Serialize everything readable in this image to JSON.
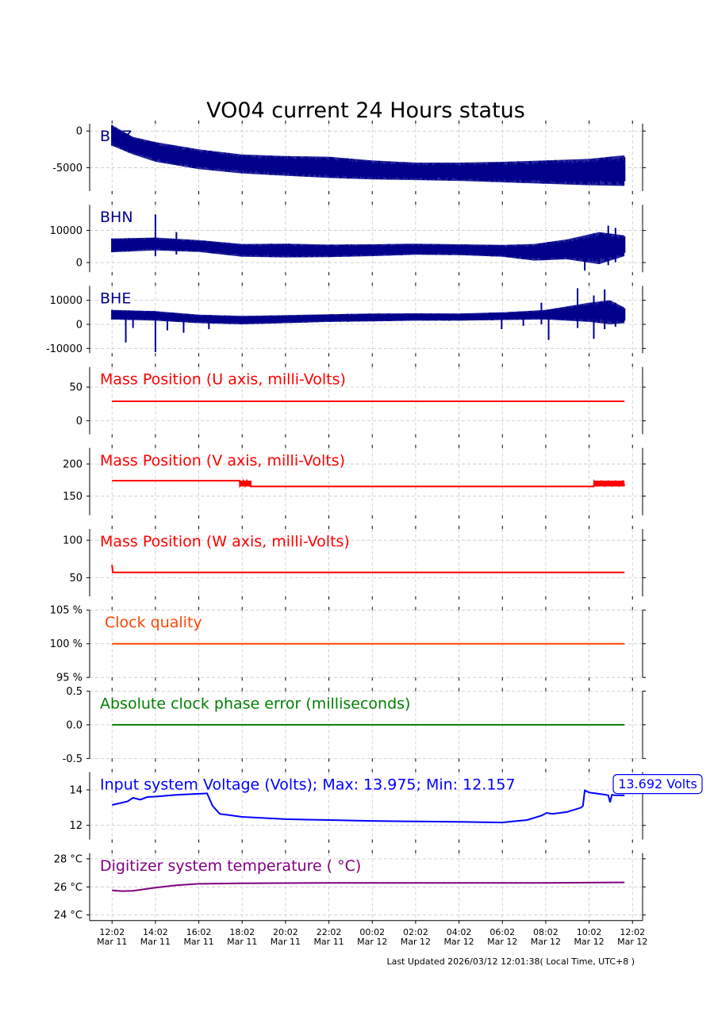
{
  "title": "VO04 current 24 Hours status",
  "footer": "Last Updated 2026/03/12 12:01:38( Local Time, UTC+8 )",
  "colors": {
    "seismic": "#00008B",
    "masspos": "#FF0000",
    "clock": "#FF4500",
    "phase": "#008000",
    "voltage": "#0000FF",
    "temperature": "#800080"
  },
  "chart_data": {
    "type": "line",
    "x_time_range": [
      "2026-03-11 11:00",
      "2026-03-12 12:30"
    ],
    "x_ticks": [
      {
        "time": "2026-03-11 12:02",
        "l1": "12:02",
        "l2": "Mar 11"
      },
      {
        "time": "2026-03-11 14:02",
        "l1": "14:02",
        "l2": "Mar 11"
      },
      {
        "time": "2026-03-11 16:02",
        "l1": "16:02",
        "l2": "Mar 11"
      },
      {
        "time": "2026-03-11 18:02",
        "l1": "18:02",
        "l2": "Mar 11"
      },
      {
        "time": "2026-03-11 20:02",
        "l1": "20:02",
        "l2": "Mar 11"
      },
      {
        "time": "2026-03-11 22:02",
        "l1": "22:02",
        "l2": "Mar 11"
      },
      {
        "time": "2026-03-12 00:02",
        "l1": "00:02",
        "l2": "Mar 12"
      },
      {
        "time": "2026-03-12 02:02",
        "l1": "02:02",
        "l2": "Mar 12"
      },
      {
        "time": "2026-03-12 04:02",
        "l1": "04:02",
        "l2": "Mar 12"
      },
      {
        "time": "2026-03-12 06:02",
        "l1": "06:02",
        "l2": "Mar 12"
      },
      {
        "time": "2026-03-12 08:02",
        "l1": "08:02",
        "l2": "Mar 12"
      },
      {
        "time": "2026-03-12 10:02",
        "l1": "10:02",
        "l2": "Mar 12"
      },
      {
        "time": "2026-03-12 12:02",
        "l1": "12:02",
        "l2": "Mar 12"
      }
    ],
    "panels": [
      {
        "id": "bhz",
        "label": "BHZ",
        "kind": "band",
        "color_key": "seismic",
        "ylim": [
          -8200,
          1000
        ],
        "yticks": [
          {
            "v": 0,
            "t": "0"
          },
          {
            "v": -5000,
            "t": "-5000"
          }
        ],
        "band": [
          {
            "time": "2026-03-11 12:02",
            "lo": -2000,
            "hi": 800
          },
          {
            "time": "2026-03-11 13:00",
            "lo": -3200,
            "hi": -800
          },
          {
            "time": "2026-03-11 14:02",
            "lo": -4200,
            "hi": -1500
          },
          {
            "time": "2026-03-11 16:02",
            "lo": -5200,
            "hi": -2500
          },
          {
            "time": "2026-03-11 18:02",
            "lo": -5800,
            "hi": -3200
          },
          {
            "time": "2026-03-11 20:02",
            "lo": -6100,
            "hi": -3400
          },
          {
            "time": "2026-03-11 22:02",
            "lo": -6400,
            "hi": -3500
          },
          {
            "time": "2026-03-12 00:02",
            "lo": -6600,
            "hi": -4000
          },
          {
            "time": "2026-03-12 02:02",
            "lo": -6700,
            "hi": -4300
          },
          {
            "time": "2026-03-12 04:02",
            "lo": -6800,
            "hi": -4300
          },
          {
            "time": "2026-03-12 06:02",
            "lo": -7000,
            "hi": -4200
          },
          {
            "time": "2026-03-12 08:02",
            "lo": -7200,
            "hi": -4000
          },
          {
            "time": "2026-03-12 10:02",
            "lo": -7400,
            "hi": -3800
          },
          {
            "time": "2026-03-12 11:40",
            "lo": -7500,
            "hi": -3300
          }
        ],
        "spikes": []
      },
      {
        "id": "bhn",
        "label": "BHN",
        "kind": "band",
        "color_key": "seismic",
        "ylim": [
          -3000,
          18000
        ],
        "yticks": [
          {
            "v": 10000,
            "t": "10000"
          },
          {
            "v": 0,
            "t": "0"
          }
        ],
        "band": [
          {
            "time": "2026-03-11 12:02",
            "lo": 3200,
            "hi": 7500
          },
          {
            "time": "2026-03-11 14:02",
            "lo": 3800,
            "hi": 7800
          },
          {
            "time": "2026-03-11 16:02",
            "lo": 3300,
            "hi": 7000
          },
          {
            "time": "2026-03-11 18:02",
            "lo": 1800,
            "hi": 5800
          },
          {
            "time": "2026-03-11 20:02",
            "lo": 1600,
            "hi": 5900
          },
          {
            "time": "2026-03-11 22:02",
            "lo": 1700,
            "hi": 5600
          },
          {
            "time": "2026-03-12 00:02",
            "lo": 2000,
            "hi": 5700
          },
          {
            "time": "2026-03-12 02:02",
            "lo": 2400,
            "hi": 5900
          },
          {
            "time": "2026-03-12 04:02",
            "lo": 2300,
            "hi": 5700
          },
          {
            "time": "2026-03-12 06:02",
            "lo": 1800,
            "hi": 5500
          },
          {
            "time": "2026-03-12 07:30",
            "lo": 600,
            "hi": 5800
          },
          {
            "time": "2026-03-12 09:00",
            "lo": 1000,
            "hi": 7200
          },
          {
            "time": "2026-03-12 10:30",
            "lo": -500,
            "hi": 9500
          },
          {
            "time": "2026-03-12 11:40",
            "lo": 2000,
            "hi": 8500
          }
        ],
        "spikes": [
          {
            "time": "2026-03-11 14:02",
            "lo": 2000,
            "hi": 15000
          },
          {
            "time": "2026-03-11 15:00",
            "lo": 2500,
            "hi": 9500
          },
          {
            "time": "2026-03-12 09:50",
            "lo": -2500,
            "hi": 7500
          },
          {
            "time": "2026-03-12 10:55",
            "lo": -800,
            "hi": 11500
          },
          {
            "time": "2026-03-12 11:15",
            "lo": 100,
            "hi": 10800
          }
        ]
      },
      {
        "id": "bhe",
        "label": "BHE",
        "kind": "band",
        "color_key": "seismic",
        "ylim": [
          -12000,
          16000
        ],
        "yticks": [
          {
            "v": 10000,
            "t": "10000"
          },
          {
            "v": 0,
            "t": "0"
          },
          {
            "v": -10000,
            "t": "-10000"
          }
        ],
        "band": [
          {
            "time": "2026-03-11 12:02",
            "lo": 2000,
            "hi": 6000
          },
          {
            "time": "2026-03-11 14:02",
            "lo": 1500,
            "hi": 5500
          },
          {
            "time": "2026-03-11 16:02",
            "lo": 500,
            "hi": 4000
          },
          {
            "time": "2026-03-11 18:02",
            "lo": 0,
            "hi": 3500
          },
          {
            "time": "2026-03-11 20:02",
            "lo": 500,
            "hi": 3800
          },
          {
            "time": "2026-03-11 22:02",
            "lo": 1000,
            "hi": 4200
          },
          {
            "time": "2026-03-12 00:02",
            "lo": 1200,
            "hi": 4500
          },
          {
            "time": "2026-03-12 02:02",
            "lo": 1500,
            "hi": 4600
          },
          {
            "time": "2026-03-12 04:02",
            "lo": 1500,
            "hi": 4500
          },
          {
            "time": "2026-03-12 06:02",
            "lo": 1800,
            "hi": 5000
          },
          {
            "time": "2026-03-12 08:02",
            "lo": 2000,
            "hi": 6000
          },
          {
            "time": "2026-03-12 10:02",
            "lo": 1000,
            "hi": 9000
          },
          {
            "time": "2026-03-12 11:00",
            "lo": 0,
            "hi": 10000
          },
          {
            "time": "2026-03-12 11:40",
            "lo": 500,
            "hi": 7000
          }
        ],
        "spikes": [
          {
            "time": "2026-03-11 12:40",
            "lo": -7500,
            "hi": 4000
          },
          {
            "time": "2026-03-11 13:00",
            "lo": -1500,
            "hi": 3500
          },
          {
            "time": "2026-03-11 14:02",
            "lo": -11500,
            "hi": 4500
          },
          {
            "time": "2026-03-11 14:35",
            "lo": -2500,
            "hi": 4000
          },
          {
            "time": "2026-03-11 15:20",
            "lo": -3500,
            "hi": 4000
          },
          {
            "time": "2026-03-11 16:30",
            "lo": -2000,
            "hi": 3500
          },
          {
            "time": "2026-03-12 06:00",
            "lo": -2000,
            "hi": 4500
          },
          {
            "time": "2026-03-12 07:00",
            "lo": -600,
            "hi": 5000
          },
          {
            "time": "2026-03-12 07:50",
            "lo": 0,
            "hi": 9000
          },
          {
            "time": "2026-03-12 08:10",
            "lo": -6500,
            "hi": 6000
          },
          {
            "time": "2026-03-12 09:30",
            "lo": -1500,
            "hi": 15000
          },
          {
            "time": "2026-03-12 10:15",
            "lo": -6000,
            "hi": 12000
          },
          {
            "time": "2026-03-12 10:45",
            "lo": -2000,
            "hi": 14500
          },
          {
            "time": "2026-03-12 11:15",
            "lo": -1000,
            "hi": 9000
          }
        ]
      },
      {
        "id": "mp_u",
        "label": "Mass Position (U axis, milli-Volts)",
        "kind": "line",
        "color_key": "masspos",
        "ylim": [
          -20,
          80
        ],
        "yticks": [
          {
            "v": 50,
            "t": "50"
          },
          {
            "v": 0,
            "t": "0"
          }
        ],
        "points": [
          {
            "time": "2026-03-11 12:02",
            "v": 29
          },
          {
            "time": "2026-03-12 11:40",
            "v": 29
          }
        ]
      },
      {
        "id": "mp_v",
        "label": "Mass Position (V axis, milli-Volts)",
        "kind": "line",
        "color_key": "masspos",
        "ylim": [
          120,
          225
        ],
        "yticks": [
          {
            "v": 200,
            "t": "200"
          },
          {
            "v": 150,
            "t": "150"
          }
        ],
        "points": [
          {
            "time": "2026-03-11 12:02",
            "v": 174
          },
          {
            "time": "2026-03-11 17:55",
            "v": 174
          },
          {
            "time": "2026-03-11 17:56",
            "v": 166
          },
          {
            "time": "2026-03-11 18:05",
            "v": 174
          },
          {
            "time": "2026-03-11 18:10",
            "v": 166
          },
          {
            "time": "2026-03-11 18:15",
            "v": 174
          },
          {
            "time": "2026-03-11 18:25",
            "v": 165
          },
          {
            "time": "2026-03-12 10:15",
            "v": 165
          },
          {
            "time": "2026-03-12 10:16",
            "v": 173
          },
          {
            "time": "2026-03-12 10:25",
            "v": 166
          },
          {
            "time": "2026-03-12 10:35",
            "v": 173
          },
          {
            "time": "2026-03-12 10:45",
            "v": 166
          },
          {
            "time": "2026-03-12 10:55",
            "v": 173
          },
          {
            "time": "2026-03-12 11:05",
            "v": 166
          },
          {
            "time": "2026-03-12 11:15",
            "v": 173
          },
          {
            "time": "2026-03-12 11:25",
            "v": 166
          },
          {
            "time": "2026-03-12 11:35",
            "v": 173
          },
          {
            "time": "2026-03-12 11:40",
            "v": 166
          }
        ],
        "bands": [
          {
            "from": "2026-03-11 17:55",
            "to": "2026-03-11 18:28",
            "lo": 165,
            "hi": 174
          },
          {
            "from": "2026-03-12 10:15",
            "to": "2026-03-12 11:40",
            "lo": 165,
            "hi": 174
          }
        ]
      },
      {
        "id": "mp_w",
        "label": "Mass Position (W axis, milli-Volts)",
        "kind": "line",
        "color_key": "masspos",
        "ylim": [
          25,
          115
        ],
        "yticks": [
          {
            "v": 100,
            "t": "100"
          },
          {
            "v": 50,
            "t": "50"
          }
        ],
        "points": [
          {
            "time": "2026-03-11 12:02",
            "v": 67
          },
          {
            "time": "2026-03-11 12:04",
            "v": 57
          },
          {
            "time": "2026-03-12 11:40",
            "v": 57
          }
        ]
      },
      {
        "id": "clock",
        "label": "Clock quality",
        "kind": "line",
        "color_key": "clock",
        "ylim": [
          95,
          105
        ],
        "yticks": [
          {
            "v": 105,
            "t": "105 %"
          },
          {
            "v": 100,
            "t": "100 %"
          },
          {
            "v": 95,
            "t": "95 %"
          }
        ],
        "points": [
          {
            "time": "2026-03-11 12:02",
            "v": 100
          },
          {
            "time": "2026-03-12 11:40",
            "v": 100
          }
        ]
      },
      {
        "id": "phase",
        "label": "Absolute clock phase error (milliseconds)",
        "kind": "line",
        "color_key": "phase",
        "ylim": [
          -0.5,
          0.5
        ],
        "yticks": [
          {
            "v": 0.5,
            "t": "0.5"
          },
          {
            "v": 0.0,
            "t": "0.0"
          },
          {
            "v": -0.5,
            "t": "-0.5"
          }
        ],
        "points": [
          {
            "time": "2026-03-11 12:02",
            "v": 0
          },
          {
            "time": "2026-03-12 11:40",
            "v": 0
          }
        ]
      },
      {
        "id": "voltage",
        "label": "Input system Voltage (Volts);    Max: 13.975; Min: 12.157",
        "kind": "line",
        "color_key": "voltage",
        "ylim": [
          11.2,
          15.0
        ],
        "yticks": [
          {
            "v": 14,
            "t": "14"
          },
          {
            "v": 12,
            "t": "12"
          }
        ],
        "annotation": "13.692 Volts",
        "points": [
          {
            "time": "2026-03-11 12:02",
            "v": 13.15
          },
          {
            "time": "2026-03-11 12:45",
            "v": 13.35
          },
          {
            "time": "2026-03-11 13:00",
            "v": 13.55
          },
          {
            "time": "2026-03-11 13:20",
            "v": 13.45
          },
          {
            "time": "2026-03-11 13:40",
            "v": 13.6
          },
          {
            "time": "2026-03-11 14:02",
            "v": 13.62
          },
          {
            "time": "2026-03-11 15:00",
            "v": 13.72
          },
          {
            "time": "2026-03-11 16:02",
            "v": 13.78
          },
          {
            "time": "2026-03-11 16:25",
            "v": 13.8
          },
          {
            "time": "2026-03-11 16:40",
            "v": 13.1
          },
          {
            "time": "2026-03-11 17:00",
            "v": 12.65
          },
          {
            "time": "2026-03-11 18:02",
            "v": 12.48
          },
          {
            "time": "2026-03-11 20:02",
            "v": 12.35
          },
          {
            "time": "2026-03-11 22:02",
            "v": 12.3
          },
          {
            "time": "2026-03-12 00:02",
            "v": 12.25
          },
          {
            "time": "2026-03-12 02:02",
            "v": 12.22
          },
          {
            "time": "2026-03-12 04:02",
            "v": 12.2
          },
          {
            "time": "2026-03-12 06:02",
            "v": 12.16
          },
          {
            "time": "2026-03-12 06:30",
            "v": 12.22
          },
          {
            "time": "2026-03-12 07:10",
            "v": 12.3
          },
          {
            "time": "2026-03-12 07:50",
            "v": 12.55
          },
          {
            "time": "2026-03-12 08:05",
            "v": 12.7
          },
          {
            "time": "2026-03-12 08:20",
            "v": 12.65
          },
          {
            "time": "2026-03-12 09:00",
            "v": 12.75
          },
          {
            "time": "2026-03-12 09:40",
            "v": 13.0
          },
          {
            "time": "2026-03-12 09:45",
            "v": 13.1
          },
          {
            "time": "2026-03-12 09:50",
            "v": 13.97
          },
          {
            "time": "2026-03-12 10:02",
            "v": 13.85
          },
          {
            "time": "2026-03-12 10:40",
            "v": 13.75
          },
          {
            "time": "2026-03-12 10:55",
            "v": 13.7
          },
          {
            "time": "2026-03-12 11:00",
            "v": 13.3
          },
          {
            "time": "2026-03-12 11:05",
            "v": 13.72
          },
          {
            "time": "2026-03-12 11:15",
            "v": 13.7
          },
          {
            "time": "2026-03-12 11:40",
            "v": 13.69
          }
        ]
      },
      {
        "id": "temp",
        "label": "Digitizer system temperature ( °C)",
        "kind": "line",
        "color_key": "temperature",
        "ylim": [
          23.6,
          28.4
        ],
        "yticks": [
          {
            "v": 28,
            "t": "28 °C"
          },
          {
            "v": 26,
            "t": "26 °C"
          },
          {
            "v": 24,
            "t": "24 °C"
          }
        ],
        "points": [
          {
            "time": "2026-03-11 12:02",
            "v": 25.75
          },
          {
            "time": "2026-03-11 12:30",
            "v": 25.7
          },
          {
            "time": "2026-03-11 13:00",
            "v": 25.72
          },
          {
            "time": "2026-03-11 14:02",
            "v": 25.95
          },
          {
            "time": "2026-03-11 15:00",
            "v": 26.12
          },
          {
            "time": "2026-03-11 16:02",
            "v": 26.22
          },
          {
            "time": "2026-03-11 18:02",
            "v": 26.26
          },
          {
            "time": "2026-03-11 22:02",
            "v": 26.28
          },
          {
            "time": "2026-03-12 04:02",
            "v": 26.28
          },
          {
            "time": "2026-03-12 08:02",
            "v": 26.28
          },
          {
            "time": "2026-03-12 11:40",
            "v": 26.32
          }
        ]
      }
    ]
  }
}
